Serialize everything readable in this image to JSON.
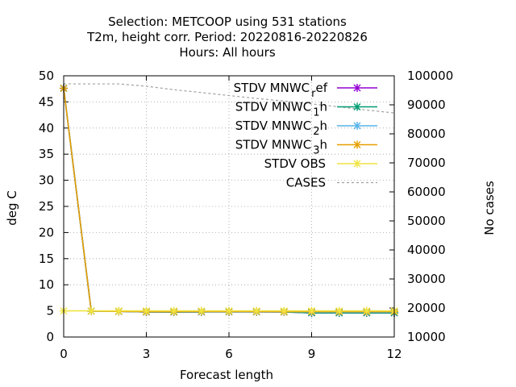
{
  "chart_data": {
    "type": "line",
    "title_lines": [
      "Selection: METCOOP using   531 stations",
      "T2m, height corr.   Period: 20220816-20220826",
      "Hours:  All hours"
    ],
    "xlabel": "Forecast length",
    "ylabel": "deg C",
    "y2label": "No cases",
    "xlim": [
      0,
      12
    ],
    "ylim": [
      0,
      50
    ],
    "y2lim": [
      10000,
      100000
    ],
    "xticks": [
      0,
      3,
      6,
      9,
      12
    ],
    "yticks": [
      0,
      5,
      10,
      15,
      20,
      25,
      30,
      35,
      40,
      45,
      50
    ],
    "y2ticks": [
      10000,
      20000,
      30000,
      40000,
      50000,
      60000,
      70000,
      80000,
      90000,
      100000
    ],
    "grid": true,
    "legend_position": "top-right",
    "x": [
      0,
      1,
      2,
      3,
      4,
      5,
      6,
      7,
      8,
      9,
      10,
      11,
      12
    ],
    "series": [
      {
        "name": "STDV MNWC_ref",
        "legend_label": [
          "STDV MNWC",
          "r",
          "ef"
        ],
        "color": "#9400d3",
        "axis": "y1",
        "values": [
          47.6,
          4.95,
          4.9,
          4.8,
          4.78,
          4.8,
          4.82,
          4.82,
          4.8,
          4.62,
          4.62,
          4.62,
          4.62
        ]
      },
      {
        "name": "STDV MNWC_1h",
        "legend_label": [
          "STDV MNWC",
          "1",
          "h"
        ],
        "color": "#009e73",
        "axis": "y1",
        "values": [
          47.6,
          4.95,
          4.9,
          4.8,
          4.78,
          4.8,
          4.82,
          4.82,
          4.8,
          4.62,
          4.62,
          4.62,
          4.62
        ]
      },
      {
        "name": "STDV MNWC_2h",
        "legend_label": [
          "STDV MNWC",
          "2",
          "h"
        ],
        "color": "#56b4e9",
        "axis": "y1",
        "values": [
          47.6,
          4.95,
          4.9,
          4.85,
          4.85,
          4.85,
          4.87,
          4.87,
          4.85,
          4.78,
          4.78,
          4.78,
          4.78
        ]
      },
      {
        "name": "STDV MNWC_3h",
        "legend_label": [
          "STDV MNWC",
          "3",
          "h"
        ],
        "color": "#e69f00",
        "axis": "y1",
        "values": [
          47.6,
          4.95,
          4.9,
          4.85,
          4.85,
          4.87,
          4.87,
          4.87,
          4.85,
          4.85,
          4.85,
          4.85,
          4.85
        ]
      },
      {
        "name": "STDV OBS",
        "legend_label": [
          "STDV OBS"
        ],
        "color": "#f0e442",
        "axis": "y1",
        "values": [
          5.0,
          5.0,
          5.0,
          5.0,
          5.0,
          5.0,
          5.0,
          5.0,
          5.0,
          5.0,
          5.0,
          5.0,
          5.0
        ]
      },
      {
        "name": "CASES",
        "legend_label": [
          "CASES"
        ],
        "color": "#a0a0a0",
        "axis": "y2",
        "dashed": true,
        "values": [
          97200,
          97200,
          97200,
          96400,
          95200,
          94200,
          93200,
          92200,
          91300,
          90300,
          89300,
          88200,
          87200
        ]
      }
    ]
  }
}
